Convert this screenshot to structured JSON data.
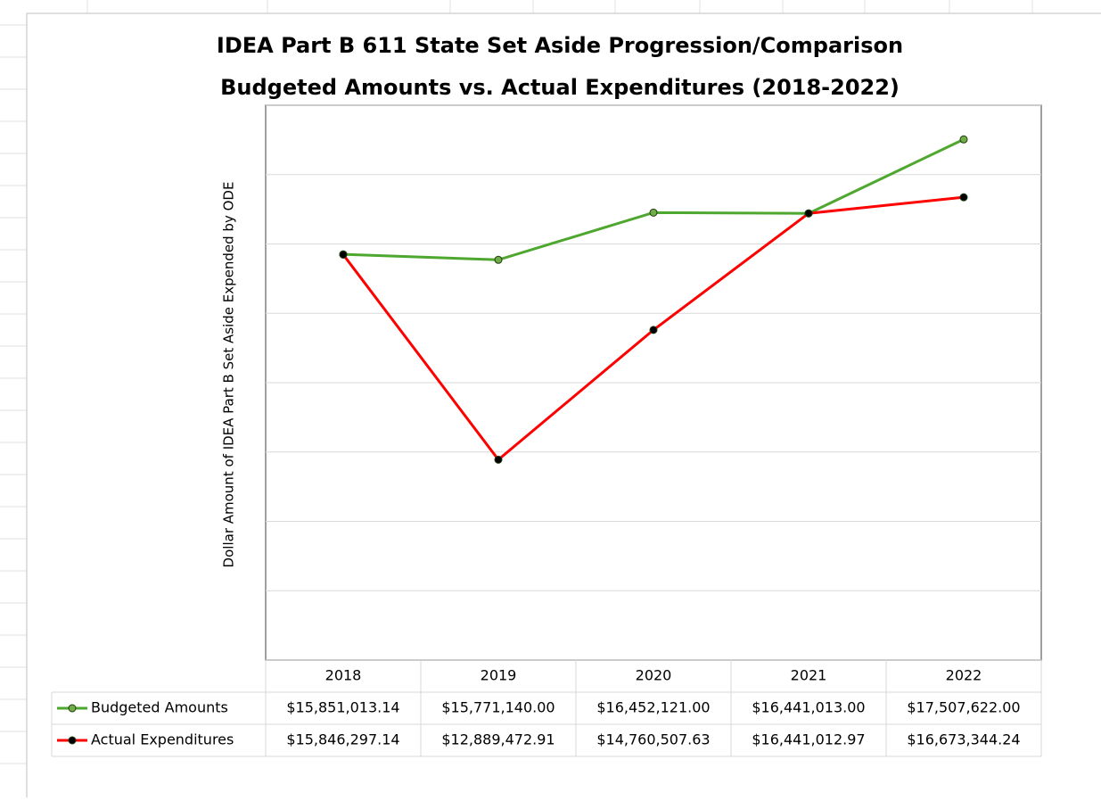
{
  "chart_data": {
    "type": "line",
    "title": "IDEA Part B 611 State Set Aside Progression/Comparison",
    "subtitle": "Budgeted Amounts vs. Actual Expenditures (2018-2022)",
    "y_label": "Dollar Amount of IDEA Part B Set Aside Expended by ODE",
    "categories": [
      "2018",
      "2019",
      "2020",
      "2021",
      "2022"
    ],
    "series": [
      {
        "name": "Budgeted Amounts",
        "color": "#4ea72e",
        "marker_color": "#70ad47",
        "values": [
          15851013.14,
          15771140.0,
          16452121.0,
          16441013.0,
          17507622.0
        ],
        "value_labels": [
          "$15,851,013.14",
          "$15,771,140.00",
          "$16,452,121.00",
          "$16,441,013.00",
          "$17,507,622.00"
        ]
      },
      {
        "name": "Actual Expenditures",
        "color": "#ff0000",
        "marker_color": "#000000",
        "values": [
          15846297.14,
          12889472.91,
          14760507.63,
          16441012.97,
          16673344.24
        ],
        "value_labels": [
          "$15,846,297.14",
          "$12,889,472.91",
          "$14,760,507.63",
          "$16,441,012.97",
          "$16,673,344.24"
        ]
      }
    ],
    "ylim": [
      10000000,
      18000000
    ],
    "yticks": [
      10000000,
      11000000,
      12000000,
      13000000,
      14000000,
      15000000,
      16000000,
      17000000,
      18000000
    ],
    "grid": true,
    "data_table": true
  }
}
